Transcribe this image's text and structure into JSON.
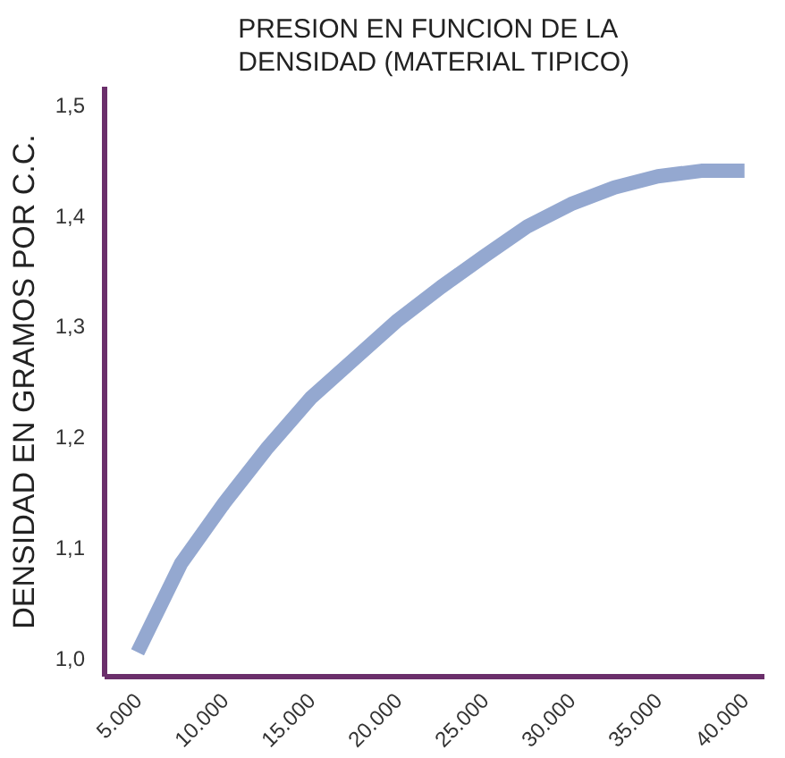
{
  "chart_data": {
    "type": "line",
    "title": "PRESION EN FUNCION DE LA\nDENSIDAD (MATERIAL TIPICO)",
    "ylabel": "DENSIDAD EN GRAMOS POR C.C.",
    "series": [
      {
        "color": "#94a8d0",
        "x": [
          5000,
          7500,
          10000,
          12500,
          15000,
          17500,
          20000,
          22500,
          25000,
          27500,
          30000,
          32500,
          35000,
          37500,
          40000
        ],
        "values": [
          1.005,
          1.085,
          1.14,
          1.19,
          1.235,
          1.27,
          1.305,
          1.335,
          1.363,
          1.39,
          1.41,
          1.425,
          1.435,
          1.44,
          1.44
        ]
      }
    ],
    "xlim": [
      3100,
      41150
    ],
    "ylim": [
      0.983,
      1.516
    ],
    "xticks": [
      {
        "value": 5000,
        "label": "5.000"
      },
      {
        "value": 10000,
        "label": "10.000"
      },
      {
        "value": 15000,
        "label": "15.000"
      },
      {
        "value": 20000,
        "label": "20.000"
      },
      {
        "value": 25000,
        "label": "25.000"
      },
      {
        "value": 30000,
        "label": "30.000"
      },
      {
        "value": 35000,
        "label": "35.000"
      },
      {
        "value": 40000,
        "label": "40.000"
      }
    ],
    "yticks": [
      {
        "value": 1.0,
        "label": "1,0"
      },
      {
        "value": 1.1,
        "label": "1,1"
      },
      {
        "value": 1.2,
        "label": "1,2"
      },
      {
        "value": 1.3,
        "label": "1,3"
      },
      {
        "value": 1.4,
        "label": "1,4"
      },
      {
        "value": 1.5,
        "label": "1,5"
      }
    ],
    "grid": false,
    "line_style": "solid"
  }
}
